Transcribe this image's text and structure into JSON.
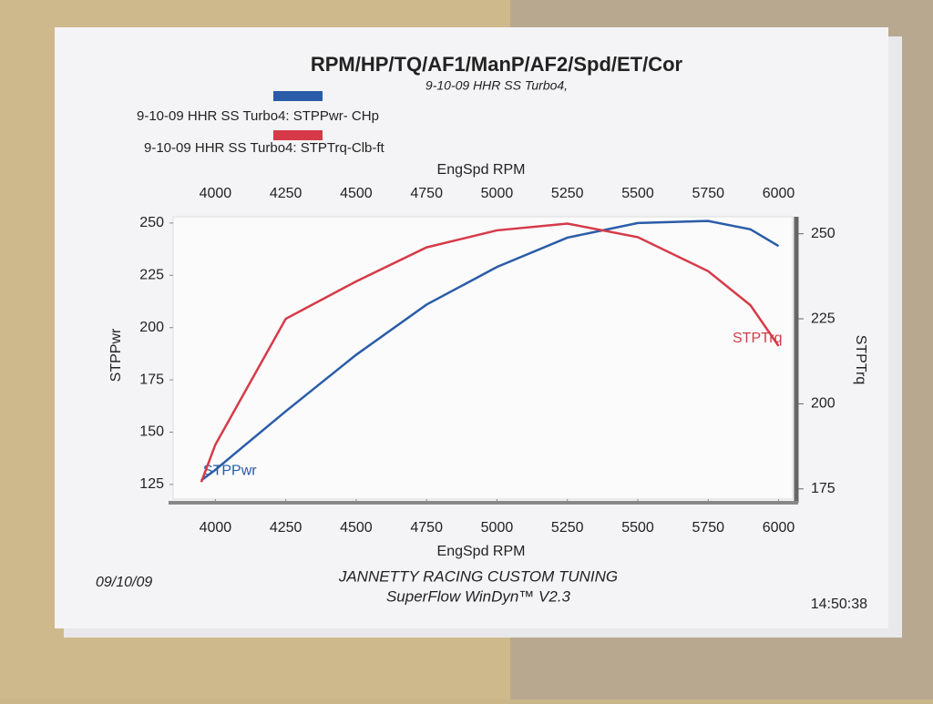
{
  "chart_data": {
    "type": "line",
    "title": "RPM/HP/TQ/AF1/ManP/AF2/Spd/ET/Cor",
    "subtitle": "9-10-09 HHR SS Turbo4,",
    "x_label": "EngSpd  RPM",
    "y_label": "STPPwr",
    "y2_label": "STPTrq",
    "x": [
      3950,
      4000,
      4250,
      4500,
      4750,
      5000,
      5250,
      5500,
      5750,
      5900,
      6000
    ],
    "series": [
      {
        "name": "9-10-09 HHR SS Turbo4: STPPwr- CHp",
        "label": "STPPwr",
        "color": "#2a5ca8",
        "values": [
          127,
          132,
          160,
          187,
          211,
          229,
          243,
          250,
          251,
          247,
          239
        ]
      },
      {
        "name": "9-10-09 HHR SS Turbo4: STPTrq-Clb-ft",
        "label": "STPTrq",
        "color": "#d63a48",
        "axis": "y2",
        "values": [
          177,
          188,
          225,
          236,
          246,
          251,
          253,
          249,
          239,
          229,
          217
        ]
      }
    ],
    "xlim": [
      3850,
      6050
    ],
    "xticks": [
      4000,
      4250,
      4500,
      4750,
      5000,
      5250,
      5500,
      5750,
      6000
    ],
    "ylim": [
      118,
      253
    ],
    "yticks": [
      125,
      150,
      175,
      200,
      225,
      250
    ],
    "y2lim": [
      172,
      255
    ],
    "y2ticks": [
      175,
      200,
      225,
      250
    ]
  },
  "footer": {
    "date": "09/10/09",
    "shop": "JANNETTY RACING CUSTOM TUNING",
    "software": "SuperFlow WinDyn™ V2.3",
    "time": "14:50:38"
  }
}
